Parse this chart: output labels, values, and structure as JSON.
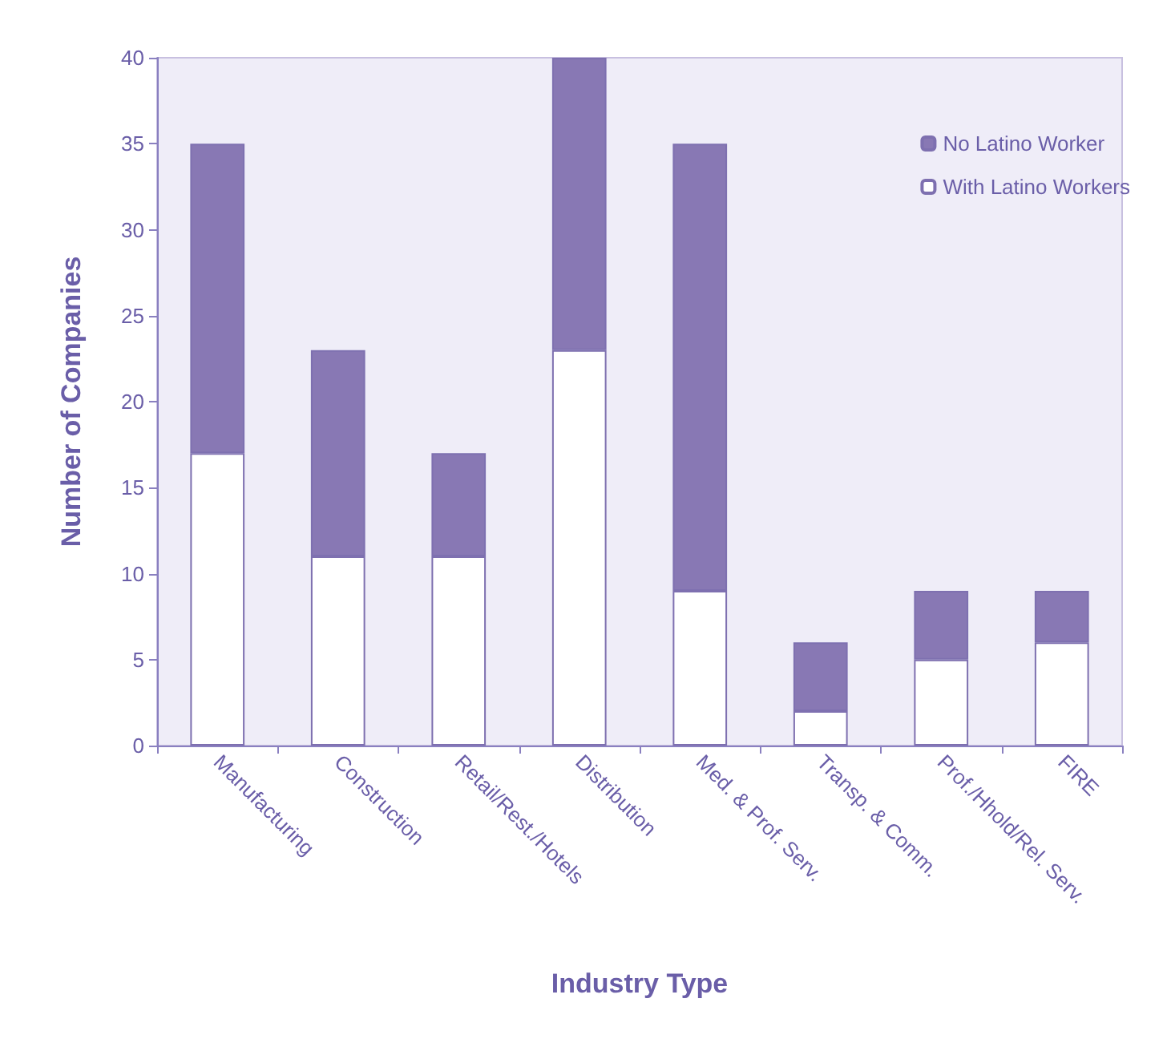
{
  "chart_data": {
    "type": "bar",
    "stacked": true,
    "xlabel": "Industry Type",
    "ylabel": "Number of Companies",
    "categories": [
      "Manufacturing",
      "Construction",
      "Retail/Rest./Hotels",
      "Distribution",
      "Med. & Prof. Serv.",
      "Transp. & Comm.",
      "Prof./Hhold/Rel. Serv.",
      "FIRE"
    ],
    "series": [
      {
        "name": "With Latino Workers",
        "color": "#ffffff",
        "values": [
          17,
          11,
          11,
          23,
          9,
          2,
          5,
          6
        ]
      },
      {
        "name": "No Latino Worker",
        "color": "#8878b4",
        "values": [
          18,
          12,
          6,
          17,
          26,
          4,
          4,
          3
        ]
      }
    ],
    "ylim": [
      0,
      40
    ],
    "yticks": [
      0,
      5,
      10,
      15,
      20,
      25,
      30,
      35,
      40
    ],
    "grid": false,
    "legend": "top right"
  }
}
